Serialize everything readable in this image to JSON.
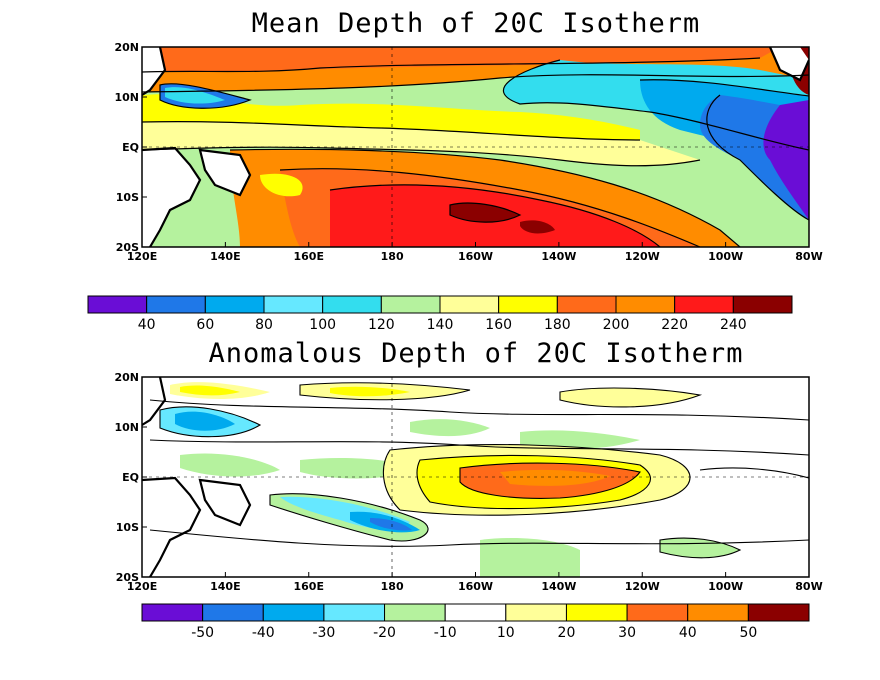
{
  "panels": [
    {
      "title": "Mean Depth of 20C Isotherm",
      "lon_labels": [
        "120E",
        "140E",
        "160E",
        "180",
        "160W",
        "140W",
        "120W",
        "100W",
        "80W"
      ],
      "lat_labels": [
        "20N",
        "10N",
        "EQ",
        "10S",
        "20S"
      ],
      "colorbar": {
        "colors": [
          "#6a0dd6",
          "#1f78e8",
          "#00aaee",
          "#66e8ff",
          "#33ddee",
          "#b5f29e",
          "#ffff99",
          "#ffff00",
          "#ff6a1a",
          "#ff8c00",
          "#ff1a1a",
          "#8b0000"
        ],
        "labels": [
          "40",
          "60",
          "80",
          "100",
          "120",
          "140",
          "160",
          "180",
          "200",
          "220",
          "240"
        ]
      }
    },
    {
      "title": "Anomalous Depth of 20C Isotherm",
      "lon_labels": [
        "120E",
        "140E",
        "160E",
        "180",
        "160W",
        "140W",
        "120W",
        "100W",
        "80W"
      ],
      "lat_labels": [
        "20N",
        "10N",
        "EQ",
        "10S",
        "20S"
      ],
      "colorbar": {
        "colors": [
          "#6a0dd6",
          "#1f78e8",
          "#00aaee",
          "#66e8ff",
          "#b5f29e",
          "#ffffff",
          "#ffff99",
          "#ffff00",
          "#ff6a1a",
          "#ff8c00",
          "#8b0000"
        ],
        "labels": [
          "-50",
          "-40",
          "-30",
          "-20",
          "-10",
          "10",
          "20",
          "30",
          "40",
          "50"
        ]
      }
    }
  ]
}
